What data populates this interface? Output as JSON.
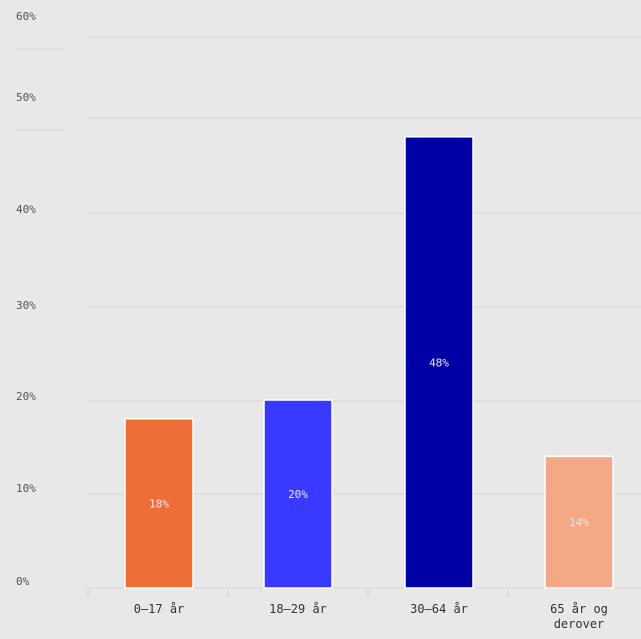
{
  "chart_data": {
    "type": "bar",
    "categories": [
      "0–17 år",
      "18–29 år",
      "30–64 år",
      "65 år og derover"
    ],
    "category_lines": [
      [
        "0–17 år"
      ],
      [
        "18–29 år"
      ],
      [
        "30–64 år"
      ],
      [
        "65 år og",
        "derover"
      ]
    ],
    "values": [
      18,
      20,
      48,
      14
    ],
    "value_labels": [
      "18%",
      "20%",
      "48%",
      "14%"
    ],
    "colors": [
      "#ef6e38",
      "#3939ff",
      "#0000a5",
      "#f4a886"
    ],
    "y_ticks": [
      0,
      10,
      20,
      30,
      40,
      50,
      60
    ],
    "y_tick_labels": [
      "0%",
      "10%",
      "20%",
      "30%",
      "40%",
      "50%",
      "60%"
    ],
    "ylim": [
      0,
      60
    ],
    "grid": true,
    "legend": "none"
  },
  "colors": {
    "background": "#e8e8e8",
    "grid": "#d6d6d6",
    "axis_text": "#555555",
    "bar_label": "#e8e8e8",
    "bar_outline": "#ffffff"
  }
}
